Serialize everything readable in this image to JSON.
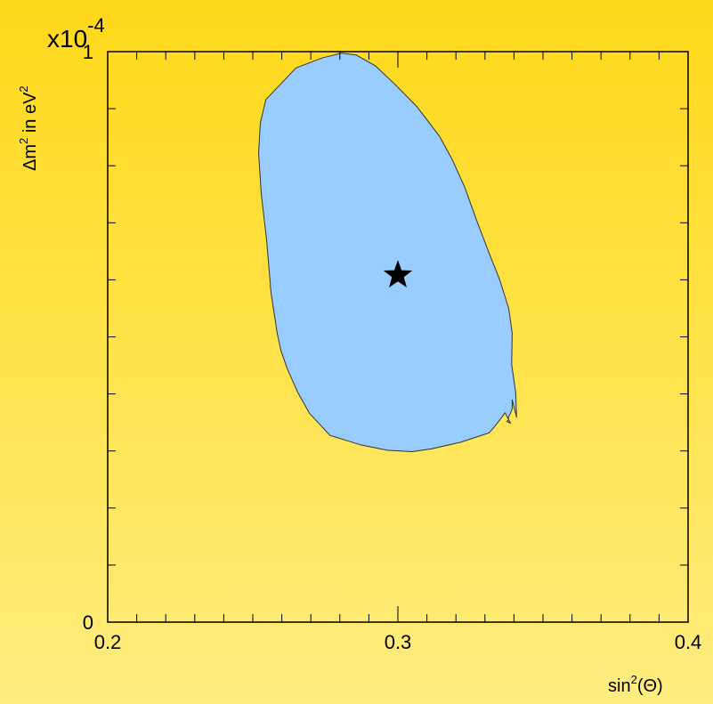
{
  "chart_data": {
    "type": "contour",
    "title": "",
    "xlabel": {
      "base": "sin",
      "sup": "2",
      "tail": "(Θ)"
    },
    "ylabel": {
      "part1": "Δm",
      "sup1": "2",
      "part2": " in eV",
      "sup2": "2"
    },
    "y_multiplier": {
      "base": "x10",
      "exp": "-4"
    },
    "xlim": [
      0.2,
      0.4
    ],
    "ylim": [
      0,
      1.0
    ],
    "x_ticks": [
      "0.2",
      "0.3",
      "0.4"
    ],
    "x_tick_values": [
      0.2,
      0.3,
      0.4
    ],
    "y_ticks": [
      "0",
      "1"
    ],
    "y_tick_values": [
      0,
      1.0
    ],
    "region": {
      "color": "#99ccff",
      "outline": "#333333",
      "points": [
        [
          0.2738,
          0.9887
        ],
        [
          0.2806,
          0.9974
        ],
        [
          0.2857,
          0.9939
        ],
        [
          0.2923,
          0.9749
        ],
        [
          0.2991,
          0.942
        ],
        [
          0.3065,
          0.9039
        ],
        [
          0.3143,
          0.8519
        ],
        [
          0.3188,
          0.81
        ],
        [
          0.3231,
          0.7615
        ],
        [
          0.3271,
          0.7048
        ],
        [
          0.3311,
          0.6511
        ],
        [
          0.3351,
          0.6
        ],
        [
          0.3382,
          0.5498
        ],
        [
          0.3394,
          0.5065
        ],
        [
          0.3392,
          0.4519
        ],
        [
          0.3406,
          0.4017
        ],
        [
          0.3409,
          0.3593
        ],
        [
          0.3394,
          0.3896
        ],
        [
          0.3394,
          0.374
        ],
        [
          0.3388,
          0.3662
        ],
        [
          0.3381,
          0.3593
        ],
        [
          0.3381,
          0.3541
        ],
        [
          0.3375,
          0.3515
        ],
        [
          0.3388,
          0.3489
        ],
        [
          0.3369,
          0.3671
        ],
        [
          0.336,
          0.3602
        ],
        [
          0.3329,
          0.3403
        ],
        [
          0.3314,
          0.3316
        ],
        [
          0.3215,
          0.3152
        ],
        [
          0.3117,
          0.3039
        ],
        [
          0.3049,
          0.2987
        ],
        [
          0.2963,
          0.3013
        ],
        [
          0.2871,
          0.3108
        ],
        [
          0.2766,
          0.3273
        ],
        [
          0.2695,
          0.3662
        ],
        [
          0.2655,
          0.4026
        ],
        [
          0.2618,
          0.445
        ],
        [
          0.2597,
          0.4762
        ],
        [
          0.2585,
          0.5039
        ],
        [
          0.2563,
          0.5766
        ],
        [
          0.2548,
          0.6684
        ],
        [
          0.2529,
          0.7506
        ],
        [
          0.252,
          0.8225
        ],
        [
          0.2526,
          0.8753
        ],
        [
          0.2545,
          0.916
        ],
        [
          0.2649,
          0.9714
        ]
      ]
    },
    "best_fit": {
      "x": 0.3,
      "y": 0.608,
      "marker": "star",
      "color": "#000000"
    }
  }
}
